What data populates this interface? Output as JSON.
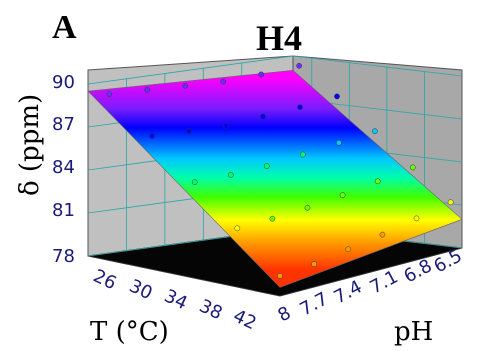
{
  "panel_letter": "A",
  "chart_data": {
    "type": "surface3d",
    "title": "H4",
    "zlabel": "δ (ppm)",
    "xlabel": "T (°C)",
    "ylabel": "pH",
    "z_ticks": [
      "90",
      "87",
      "84",
      "81",
      "78"
    ],
    "t_ticks": [
      "26",
      "30",
      "34",
      "38",
      "42"
    ],
    "ph_ticks": [
      "8",
      "7.7",
      "7.4",
      "7.1",
      "6.8",
      "6.5"
    ],
    "zlim": [
      78,
      90
    ],
    "tlim": [
      24,
      42
    ],
    "phlim": [
      6.4,
      8.0
    ],
    "surface_corners": [
      {
        "T": 24,
        "pH": 6.4,
        "delta": 89.0
      },
      {
        "T": 24,
        "pH": 8.0,
        "delta": 89.5
      },
      {
        "T": 42,
        "pH": 8.0,
        "delta": 78.6
      },
      {
        "T": 42,
        "pH": 6.4,
        "delta": 80.0
      }
    ],
    "colormap": [
      "#ff00ff",
      "#6a2cff",
      "#0000ff",
      "#00c8ff",
      "#00ff66",
      "#66ff00",
      "#ffff00",
      "#ff9900",
      "#ff3300"
    ],
    "points": [
      {
        "T": 26,
        "pH": 6.5,
        "delta": 89.2
      },
      {
        "T": 26,
        "pH": 6.8,
        "delta": 89.0
      },
      {
        "T": 26,
        "pH": 7.1,
        "delta": 88.9
      },
      {
        "T": 26,
        "pH": 7.4,
        "delta": 89.0
      },
      {
        "T": 26,
        "pH": 7.7,
        "delta": 89.1
      },
      {
        "T": 26,
        "pH": 8.0,
        "delta": 89.2
      },
      {
        "T": 30,
        "pH": 6.5,
        "delta": 87.4
      },
      {
        "T": 30,
        "pH": 6.8,
        "delta": 87.1
      },
      {
        "T": 30,
        "pH": 7.1,
        "delta": 86.9
      },
      {
        "T": 30,
        "pH": 7.4,
        "delta": 86.7
      },
      {
        "T": 30,
        "pH": 7.7,
        "delta": 86.8
      },
      {
        "T": 30,
        "pH": 8.0,
        "delta": 86.9
      },
      {
        "T": 34,
        "pH": 6.5,
        "delta": 85.3
      },
      {
        "T": 34,
        "pH": 6.8,
        "delta": 85.0
      },
      {
        "T": 34,
        "pH": 7.1,
        "delta": 84.7
      },
      {
        "T": 34,
        "pH": 7.4,
        "delta": 84.4
      },
      {
        "T": 34,
        "pH": 7.7,
        "delta": 84.3
      },
      {
        "T": 34,
        "pH": 8.0,
        "delta": 84.3
      },
      {
        "T": 38,
        "pH": 6.5,
        "delta": 83.1
      },
      {
        "T": 38,
        "pH": 6.8,
        "delta": 82.7
      },
      {
        "T": 38,
        "pH": 7.1,
        "delta": 82.3
      },
      {
        "T": 38,
        "pH": 7.4,
        "delta": 82.0
      },
      {
        "T": 38,
        "pH": 7.7,
        "delta": 81.8
      },
      {
        "T": 38,
        "pH": 8.0,
        "delta": 81.7
      },
      {
        "T": 42,
        "pH": 6.5,
        "delta": 81.0
      },
      {
        "T": 42,
        "pH": 6.8,
        "delta": 80.5
      },
      {
        "T": 42,
        "pH": 7.1,
        "delta": 80.0
      },
      {
        "T": 42,
        "pH": 7.4,
        "delta": 79.6
      },
      {
        "T": 42,
        "pH": 7.7,
        "delta": 79.2
      },
      {
        "T": 42,
        "pH": 8.0,
        "delta": 79.0
      }
    ]
  }
}
